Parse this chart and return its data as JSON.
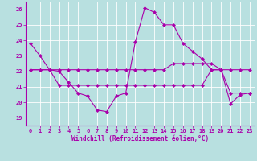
{
  "title": "",
  "xlabel": "Windchill (Refroidissement éolien,°C)",
  "ylabel": "",
  "background_color": "#b8e0e0",
  "line_color": "#aa00aa",
  "ylim": [
    18.5,
    26.5
  ],
  "xlim": [
    -0.5,
    23.5
  ],
  "yticks": [
    19,
    20,
    21,
    22,
    23,
    24,
    25,
    26
  ],
  "xticks": [
    0,
    1,
    2,
    3,
    4,
    5,
    6,
    7,
    8,
    9,
    10,
    11,
    12,
    13,
    14,
    15,
    16,
    17,
    18,
    19,
    20,
    21,
    22,
    23
  ],
  "series1_x": [
    0,
    1,
    2,
    3,
    4,
    5,
    6,
    7,
    8,
    9,
    10,
    11,
    12,
    13,
    14,
    15,
    16,
    17,
    18,
    19,
    20,
    21,
    22,
    23
  ],
  "series1_y": [
    23.8,
    23.0,
    22.1,
    22.0,
    21.3,
    20.6,
    20.4,
    19.5,
    19.4,
    20.4,
    20.6,
    23.9,
    26.1,
    25.8,
    25.0,
    25.0,
    23.8,
    23.3,
    22.8,
    22.1,
    22.1,
    19.9,
    20.5,
    20.6
  ],
  "series2_x": [
    0,
    1,
    2,
    3,
    4,
    5,
    6,
    7,
    8,
    9,
    10,
    11,
    12,
    13,
    14,
    15,
    16,
    17,
    18,
    19,
    20,
    21,
    22,
    23
  ],
  "series2_y": [
    22.1,
    22.1,
    22.1,
    22.1,
    22.1,
    22.1,
    22.1,
    22.1,
    22.1,
    22.1,
    22.1,
    22.1,
    22.1,
    22.1,
    22.1,
    22.5,
    22.5,
    22.5,
    22.5,
    22.5,
    22.1,
    22.1,
    22.1,
    22.1
  ],
  "series3_x": [
    0,
    1,
    2,
    3,
    4,
    5,
    6,
    7,
    8,
    9,
    10,
    11,
    12,
    13,
    14,
    15,
    16,
    17,
    18,
    19,
    20,
    21,
    22,
    23
  ],
  "series3_y": [
    22.1,
    22.1,
    22.1,
    21.1,
    21.1,
    21.1,
    21.1,
    21.1,
    21.1,
    21.1,
    21.1,
    21.1,
    21.1,
    21.1,
    21.1,
    21.1,
    21.1,
    21.1,
    21.1,
    22.1,
    22.1,
    20.6,
    20.6,
    20.6
  ]
}
